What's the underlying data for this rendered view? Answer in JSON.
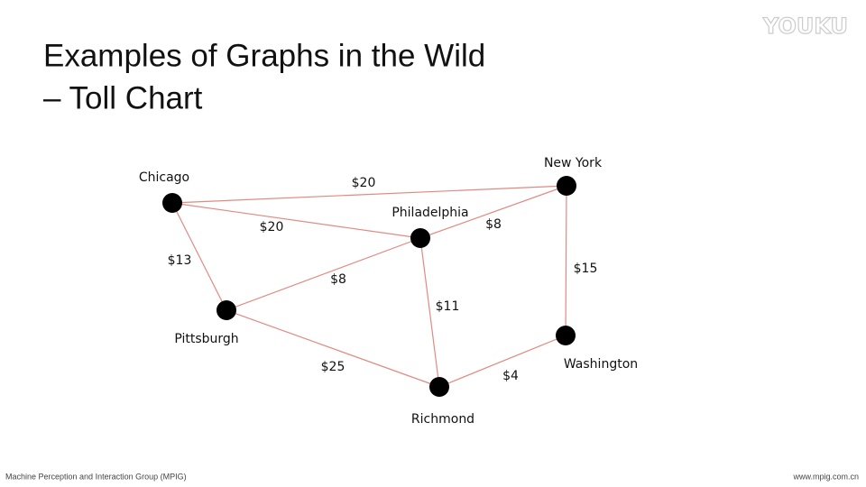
{
  "title": [
    "Examples of Graphs in the Wild",
    "– Toll Chart"
  ],
  "nodes": [
    {
      "label": "Chicago"
    },
    {
      "label": "New York"
    },
    {
      "label": "Philadelphia"
    },
    {
      "label": "Pittsburgh"
    },
    {
      "label": "Washington"
    },
    {
      "label": "Richmond"
    }
  ],
  "edges": [
    {
      "label": "$20"
    },
    {
      "label": "$20"
    },
    {
      "label": "$13"
    },
    {
      "label": "$8"
    },
    {
      "label": "$8"
    },
    {
      "label": "$11"
    },
    {
      "label": "$15"
    },
    {
      "label": "$25"
    },
    {
      "label": "$4"
    }
  ],
  "footer": {
    "left": "Machine Perception and Interaction Group (MPIG)",
    "right": "www.mpig.com.cn"
  },
  "watermark": "YOUKU"
}
